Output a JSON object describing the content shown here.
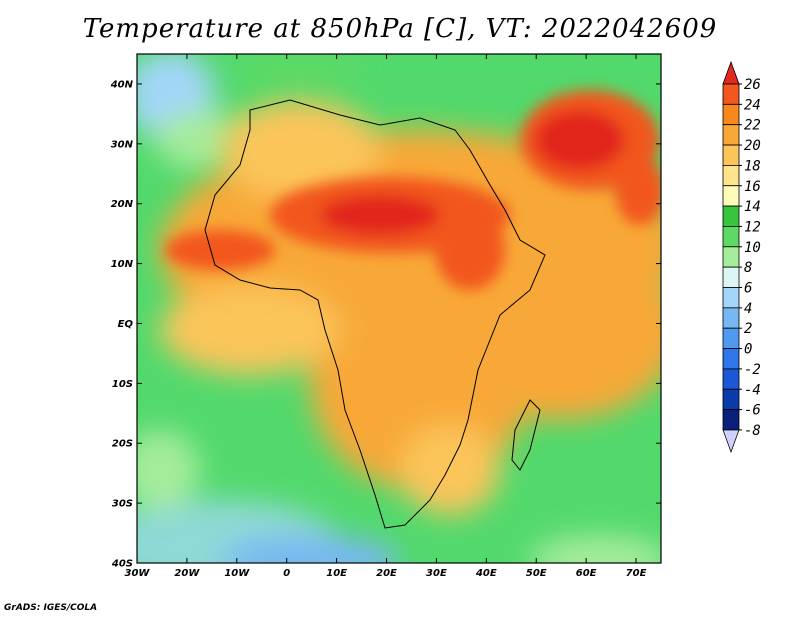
{
  "title": "Temperature at 850hPa [C], VT: 2022042609",
  "credit": "GrADS: IGES/COLA",
  "map": {
    "lon_range": [
      -30,
      75
    ],
    "lat_range": [
      -40,
      45
    ],
    "lon_ticks": [
      "30W",
      "20W",
      "10W",
      "0",
      "10E",
      "20E",
      "30E",
      "40E",
      "50E",
      "60E",
      "70E"
    ],
    "lat_ticks": [
      "40S",
      "30S",
      "20S",
      "10S",
      "EQ",
      "10N",
      "20N",
      "30N",
      "40N"
    ],
    "ocean_color": "#52d96c",
    "land_color": "#f5a849"
  },
  "colorbar": {
    "levels": [
      "26",
      "24",
      "22",
      "20",
      "18",
      "16",
      "14",
      "12",
      "10",
      "8",
      "6",
      "4",
      "2",
      "0",
      "-2",
      "-4",
      "-6",
      "-8"
    ],
    "colors": [
      "#e2281f",
      "#f2571d",
      "#f8871e",
      "#f8a838",
      "#fbc55a",
      "#fde38a",
      "#fffbb9",
      "#39c43d",
      "#5ed964",
      "#a5ec9b",
      "#dcf6f5",
      "#a3d6f8",
      "#78b8f2",
      "#4f9aef",
      "#2f76ea",
      "#1c57d6",
      "#0b3aab",
      "#0a1f7a",
      "#d0d0ff"
    ]
  }
}
